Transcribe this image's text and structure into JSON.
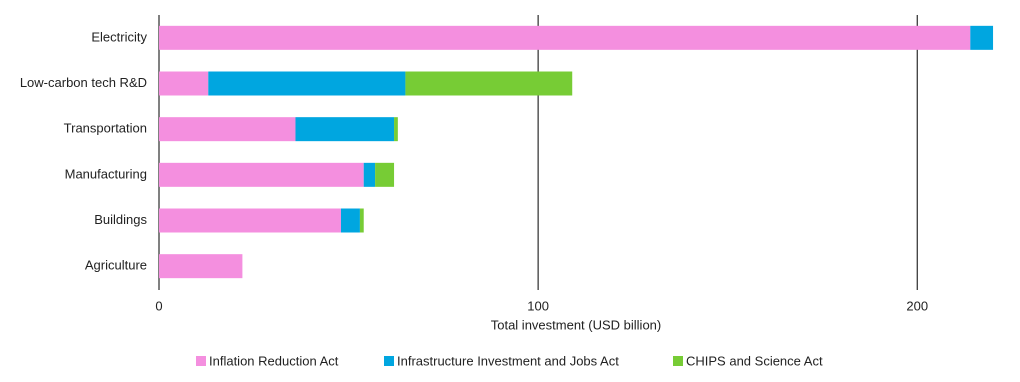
{
  "chart_data": {
    "type": "stacked-bar-horizontal",
    "categories": [
      "Electricity",
      "Low-carbon tech R&D",
      "Transportation",
      "Manufacturing",
      "Buildings",
      "Agriculture"
    ],
    "series": [
      {
        "name": "Inflation Reduction Act",
        "color": "#f48fdf",
        "values": [
          214,
          13,
          36,
          54,
          48,
          22
        ]
      },
      {
        "name": "Infrastructure Investment and Jobs Act",
        "color": "#00a6e0",
        "values": [
          6,
          52,
          26,
          3,
          5,
          0
        ]
      },
      {
        "name": "CHIPS and Science Act",
        "color": "#77cc35",
        "values": [
          0,
          44,
          1,
          5,
          1,
          0
        ]
      }
    ],
    "xlabel": "Total investment (USD billion)",
    "xlim": [
      0,
      225
    ],
    "xticks": [
      0,
      100,
      200
    ],
    "grid": true
  }
}
